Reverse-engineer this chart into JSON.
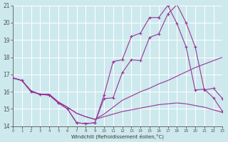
{
  "xlabel": "Windchill (Refroidissement éolien,°C)",
  "background_color": "#cde9ed",
  "grid_color": "#ffffff",
  "line_color": "#993399",
  "xlim": [
    0,
    23
  ],
  "ylim": [
    14,
    21
  ],
  "series1_x": [
    0,
    1,
    2,
    3,
    4,
    5,
    6,
    7,
    8,
    9,
    10,
    11,
    12,
    13,
    14,
    15,
    16,
    17,
    18,
    19,
    20,
    21,
    22,
    23
  ],
  "series1_y": [
    16.8,
    16.65,
    16.0,
    15.85,
    15.8,
    15.35,
    15.0,
    14.2,
    14.15,
    14.2,
    15.8,
    17.75,
    17.85,
    19.2,
    19.4,
    20.3,
    20.3,
    21.0,
    19.95,
    18.6,
    16.1,
    16.15,
    15.65,
    14.85
  ],
  "series2_x": [
    0,
    1,
    2,
    3,
    4,
    5,
    6,
    7,
    8,
    9,
    10,
    11,
    12,
    13,
    14,
    15,
    16,
    17,
    18,
    19,
    20,
    21,
    22,
    23
  ],
  "series2_y": [
    16.8,
    16.65,
    16.0,
    15.85,
    15.8,
    15.35,
    15.0,
    14.2,
    14.15,
    14.2,
    15.6,
    15.65,
    17.1,
    17.85,
    17.8,
    19.15,
    19.35,
    20.5,
    21.05,
    20.0,
    18.6,
    16.1,
    16.2,
    15.6
  ],
  "series3_x": [
    0,
    1,
    2,
    3,
    4,
    5,
    6,
    7,
    8,
    9,
    10,
    11,
    12,
    13,
    14,
    15,
    16,
    17,
    18,
    19,
    20,
    21,
    22,
    23
  ],
  "series3_y": [
    16.8,
    16.65,
    16.05,
    15.85,
    15.85,
    15.4,
    15.1,
    14.75,
    14.55,
    14.4,
    14.7,
    15.1,
    15.5,
    15.75,
    16.0,
    16.2,
    16.45,
    16.65,
    16.9,
    17.15,
    17.4,
    17.6,
    17.8,
    18.0
  ],
  "series4_x": [
    0,
    1,
    2,
    3,
    4,
    5,
    6,
    7,
    8,
    9,
    10,
    11,
    12,
    13,
    14,
    15,
    16,
    17,
    18,
    19,
    20,
    21,
    22,
    23
  ],
  "series4_y": [
    16.8,
    16.65,
    16.05,
    15.85,
    15.85,
    15.4,
    15.1,
    14.75,
    14.55,
    14.4,
    14.55,
    14.7,
    14.85,
    14.95,
    15.05,
    15.15,
    15.25,
    15.3,
    15.35,
    15.3,
    15.2,
    15.1,
    14.95,
    14.8
  ]
}
